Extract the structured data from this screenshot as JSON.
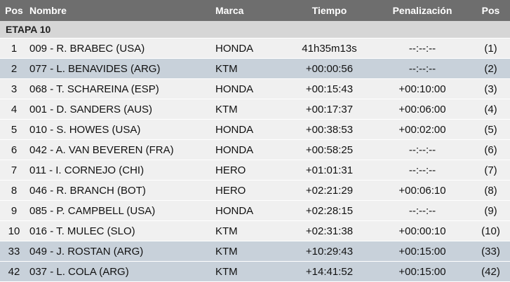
{
  "table": {
    "header": [
      "Pos",
      "Nombre",
      "Marca",
      "Tiempo",
      "Penalización",
      "Pos"
    ],
    "section": "ETAPA 10",
    "rows": [
      [
        "1",
        "009 - R. BRABEC (USA)",
        "HONDA",
        "41h35m13s",
        "--:--:--",
        "(1)"
      ],
      [
        "2",
        "077 - L. BENAVIDES (ARG)",
        "KTM",
        "+00:00:56",
        "--:--:--",
        "(2)"
      ],
      [
        "3",
        "068 - T. SCHAREINA (ESP)",
        "HONDA",
        "+00:15:43",
        "+00:10:00",
        "(3)"
      ],
      [
        "4",
        "001 - D. SANDERS (AUS)",
        "KTM",
        "+00:17:37",
        "+00:06:00",
        "(4)"
      ],
      [
        "5",
        "010 - S. HOWES (USA)",
        "HONDA",
        "+00:38:53",
        "+00:02:00",
        "(5)"
      ],
      [
        "6",
        "042 - A. VAN BEVEREN (FRA)",
        "HONDA",
        "+00:58:25",
        "--:--:--",
        "(6)"
      ],
      [
        "7",
        "011 - I. CORNEJO (CHI)",
        "HERO",
        "+01:01:31",
        "--:--:--",
        "(7)"
      ],
      [
        "8",
        "046 - R. BRANCH (BOT)",
        "HERO",
        "+02:21:29",
        "+00:06:10",
        "(8)"
      ],
      [
        "9",
        "085 - P. CAMPBELL (USA)",
        "HONDA",
        "+02:28:15",
        "--:--:--",
        "(9)"
      ],
      [
        "10",
        "016 - T. MULEC (SLO)",
        "KTM",
        "+02:31:38",
        "+00:00:10",
        "(10)"
      ],
      [
        "33",
        "049 - J. ROSTAN (ARG)",
        "KTM",
        "+10:29:43",
        "+00:15:00",
        "(33)"
      ],
      [
        "42",
        "037 - L. COLA (ARG)",
        "KTM",
        "+14:41:52",
        "+00:15:00",
        "(42)"
      ]
    ]
  }
}
